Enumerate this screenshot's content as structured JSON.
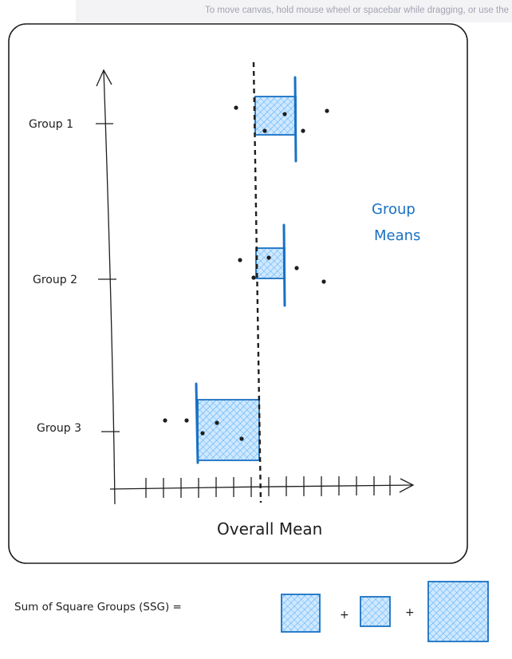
{
  "canvas_hint": "To move canvas, hold mouse wheel or spacebar while dragging, or use the",
  "diagram": {
    "groups": [
      {
        "label": "Group 1"
      },
      {
        "label": "Group 2"
      },
      {
        "label": "Group 3"
      }
    ],
    "group_means_label_line1": "Group",
    "group_means_label_line2": "Means",
    "overall_mean_label": "Overall Mean",
    "formula_label": "Sum of Square Groups (SSG) =",
    "plus_sign": "+",
    "colors": {
      "ink": "#1e1e1e",
      "accent": "#1971c2",
      "fill": "#a5d8ff"
    }
  }
}
